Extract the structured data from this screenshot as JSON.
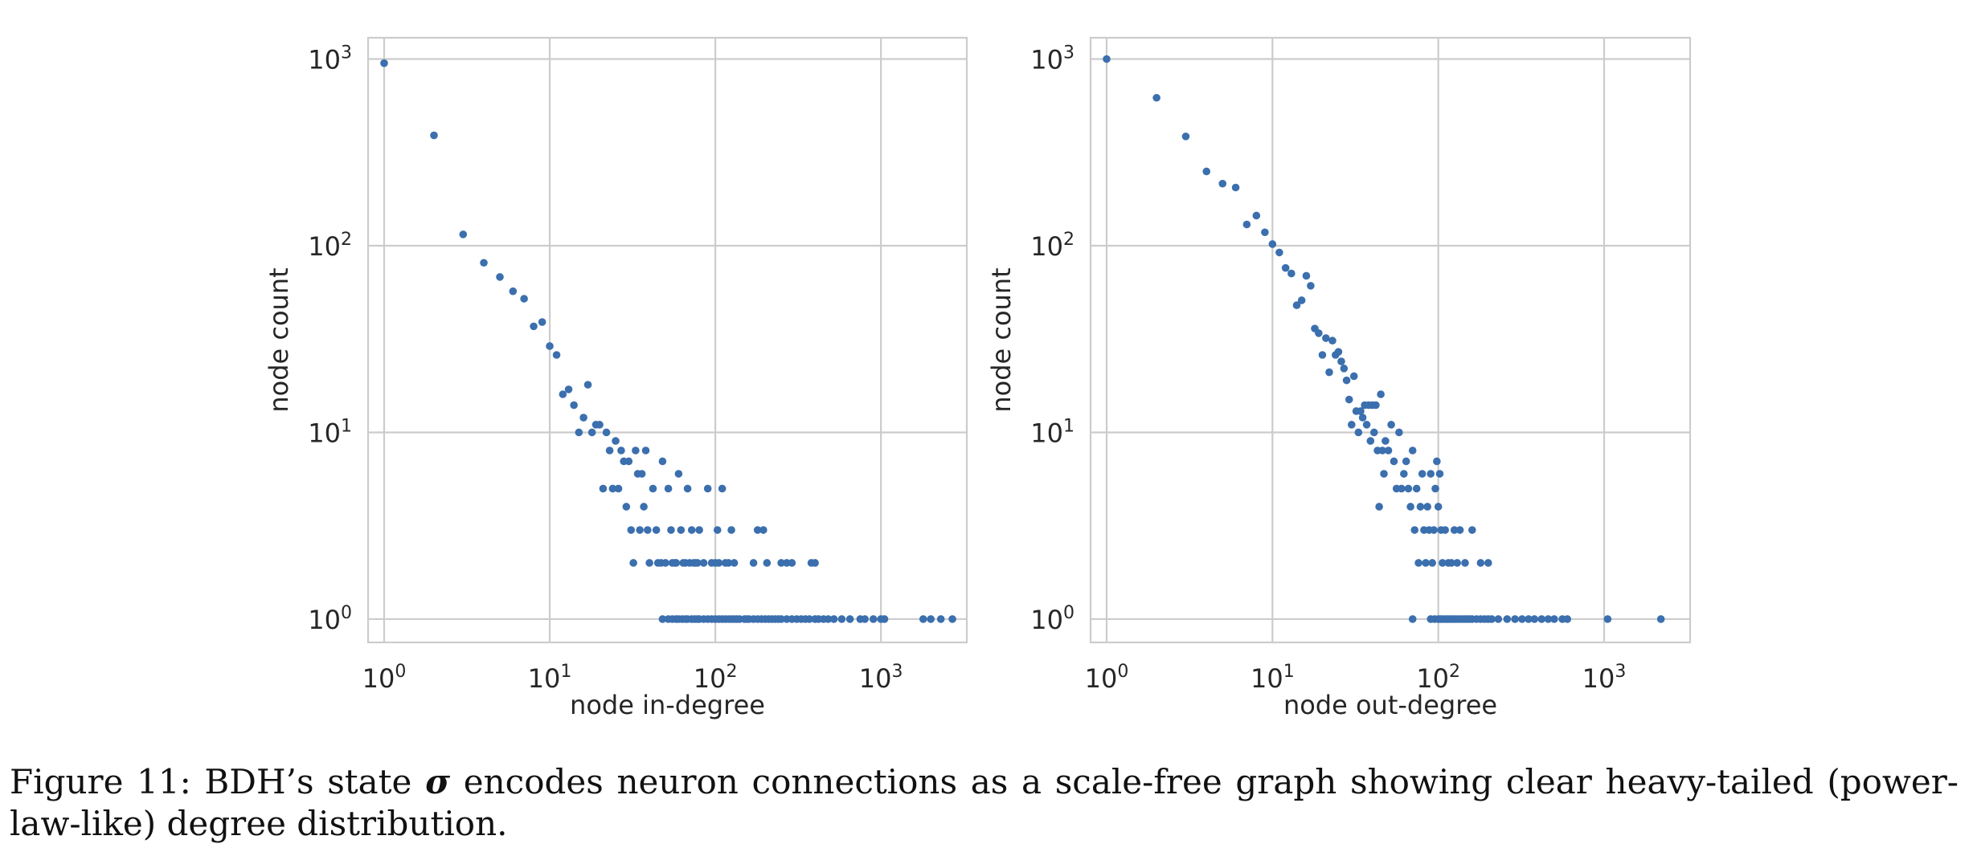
{
  "figure": {
    "caption_prefix": "Figure 11: BDH’s state",
    "caption_symbol": "σ",
    "caption_suffix": "encodes neuron connections as a scale-free graph showing clear heavy-tailed (power-law-like) degree distribution."
  },
  "chart_data": [
    {
      "type": "scatter",
      "xlabel": "node in-degree",
      "ylabel": "node count",
      "xscale": "log",
      "yscale": "log",
      "xlim": [
        0.8,
        3300
      ],
      "ylim": [
        0.75,
        1300
      ],
      "xticks": [
        {
          "value": 1,
          "base": "10",
          "exp": "0"
        },
        {
          "value": 10,
          "base": "10",
          "exp": "1"
        },
        {
          "value": 100,
          "base": "10",
          "exp": "2"
        },
        {
          "value": 1000,
          "base": "10",
          "exp": "3"
        }
      ],
      "yticks": [
        {
          "value": 1,
          "base": "10",
          "exp": "0"
        },
        {
          "value": 10,
          "base": "10",
          "exp": "1"
        },
        {
          "value": 100,
          "base": "10",
          "exp": "2"
        },
        {
          "value": 1000,
          "base": "10",
          "exp": "3"
        }
      ],
      "grid": true,
      "color": "#3b6fae",
      "points": [
        [
          1,
          950
        ],
        [
          2,
          390
        ],
        [
          3,
          115
        ],
        [
          4,
          81
        ],
        [
          5,
          68
        ],
        [
          6,
          57
        ],
        [
          7,
          52
        ],
        [
          8,
          37
        ],
        [
          9,
          39
        ],
        [
          10,
          29
        ],
        [
          11,
          26
        ],
        [
          12,
          16
        ],
        [
          13,
          17
        ],
        [
          14,
          14
        ],
        [
          15,
          10
        ],
        [
          16,
          12
        ],
        [
          17,
          18
        ],
        [
          18,
          10
        ],
        [
          19,
          11
        ],
        [
          20,
          11
        ],
        [
          21,
          5
        ],
        [
          22,
          10
        ],
        [
          23,
          8
        ],
        [
          24,
          5
        ],
        [
          25,
          9
        ],
        [
          26,
          5
        ],
        [
          27,
          8
        ],
        [
          28,
          7
        ],
        [
          29,
          4
        ],
        [
          30,
          7
        ],
        [
          31,
          3
        ],
        [
          32,
          2
        ],
        [
          33,
          8
        ],
        [
          34,
          6
        ],
        [
          35,
          3
        ],
        [
          36,
          6
        ],
        [
          37,
          4
        ],
        [
          38,
          8
        ],
        [
          39,
          3
        ],
        [
          40,
          2
        ],
        [
          42,
          5
        ],
        [
          44,
          3
        ],
        [
          45,
          2
        ],
        [
          47,
          2
        ],
        [
          48,
          7
        ],
        [
          50,
          2
        ],
        [
          52,
          5
        ],
        [
          54,
          3
        ],
        [
          55,
          2
        ],
        [
          57,
          2
        ],
        [
          58,
          2
        ],
        [
          60,
          6
        ],
        [
          62,
          3
        ],
        [
          64,
          2
        ],
        [
          66,
          2
        ],
        [
          68,
          5
        ],
        [
          70,
          2
        ],
        [
          72,
          3
        ],
        [
          74,
          2
        ],
        [
          76,
          2
        ],
        [
          78,
          2
        ],
        [
          80,
          3
        ],
        [
          85,
          2
        ],
        [
          90,
          5
        ],
        [
          95,
          2
        ],
        [
          100,
          2
        ],
        [
          103,
          3
        ],
        [
          105,
          2
        ],
        [
          110,
          5
        ],
        [
          115,
          2
        ],
        [
          120,
          2
        ],
        [
          125,
          3
        ],
        [
          130,
          2
        ],
        [
          170,
          2
        ],
        [
          180,
          3
        ],
        [
          195,
          3
        ],
        [
          205,
          2
        ],
        [
          250,
          2
        ],
        [
          270,
          2
        ],
        [
          290,
          2
        ],
        [
          380,
          2
        ],
        [
          400,
          2
        ],
        [
          48,
          1
        ],
        [
          52,
          1
        ],
        [
          55,
          1
        ],
        [
          58,
          1
        ],
        [
          60,
          1
        ],
        [
          63,
          1
        ],
        [
          66,
          1
        ],
        [
          68,
          1
        ],
        [
          72,
          1
        ],
        [
          75,
          1
        ],
        [
          78,
          1
        ],
        [
          80,
          1
        ],
        [
          85,
          1
        ],
        [
          90,
          1
        ],
        [
          95,
          1
        ],
        [
          100,
          1
        ],
        [
          105,
          1
        ],
        [
          110,
          1
        ],
        [
          115,
          1
        ],
        [
          120,
          1
        ],
        [
          125,
          1
        ],
        [
          130,
          1
        ],
        [
          135,
          1
        ],
        [
          140,
          1
        ],
        [
          150,
          1
        ],
        [
          155,
          1
        ],
        [
          160,
          1
        ],
        [
          170,
          1
        ],
        [
          180,
          1
        ],
        [
          190,
          1
        ],
        [
          200,
          1
        ],
        [
          210,
          1
        ],
        [
          220,
          1
        ],
        [
          230,
          1
        ],
        [
          240,
          1
        ],
        [
          250,
          1
        ],
        [
          270,
          1
        ],
        [
          290,
          1
        ],
        [
          310,
          1
        ],
        [
          330,
          1
        ],
        [
          350,
          1
        ],
        [
          370,
          1
        ],
        [
          400,
          1
        ],
        [
          420,
          1
        ],
        [
          450,
          1
        ],
        [
          480,
          1
        ],
        [
          520,
          1
        ],
        [
          580,
          1
        ],
        [
          650,
          1
        ],
        [
          750,
          1
        ],
        [
          800,
          1
        ],
        [
          900,
          1
        ],
        [
          1000,
          1
        ],
        [
          1050,
          1
        ],
        [
          1800,
          1
        ],
        [
          2000,
          1
        ],
        [
          2300,
          1
        ],
        [
          2700,
          1
        ]
      ]
    },
    {
      "type": "scatter",
      "xlabel": "node out-degree",
      "ylabel": "node count",
      "xscale": "log",
      "yscale": "log",
      "xlim": [
        0.8,
        3300
      ],
      "ylim": [
        0.75,
        1300
      ],
      "xticks": [
        {
          "value": 1,
          "base": "10",
          "exp": "0"
        },
        {
          "value": 10,
          "base": "10",
          "exp": "1"
        },
        {
          "value": 100,
          "base": "10",
          "exp": "2"
        },
        {
          "value": 1000,
          "base": "10",
          "exp": "3"
        }
      ],
      "yticks": [
        {
          "value": 1,
          "base": "10",
          "exp": "0"
        },
        {
          "value": 10,
          "base": "10",
          "exp": "1"
        },
        {
          "value": 100,
          "base": "10",
          "exp": "2"
        },
        {
          "value": 1000,
          "base": "10",
          "exp": "3"
        }
      ],
      "grid": true,
      "color": "#3b6fae",
      "points": [
        [
          1,
          1000
        ],
        [
          2,
          620
        ],
        [
          3,
          385
        ],
        [
          4,
          250
        ],
        [
          5,
          215
        ],
        [
          6,
          205
        ],
        [
          7,
          130
        ],
        [
          8,
          145
        ],
        [
          9,
          118
        ],
        [
          10,
          102
        ],
        [
          11,
          92
        ],
        [
          12,
          76
        ],
        [
          13,
          71
        ],
        [
          14,
          48
        ],
        [
          15,
          51
        ],
        [
          16,
          69
        ],
        [
          17,
          61
        ],
        [
          18,
          36
        ],
        [
          19,
          34
        ],
        [
          20,
          26
        ],
        [
          21,
          32
        ],
        [
          22,
          21
        ],
        [
          23,
          31
        ],
        [
          24,
          26
        ],
        [
          25,
          27
        ],
        [
          26,
          24
        ],
        [
          27,
          22
        ],
        [
          28,
          19
        ],
        [
          29,
          15
        ],
        [
          30,
          11
        ],
        [
          31,
          20
        ],
        [
          32,
          13
        ],
        [
          33,
          10
        ],
        [
          34,
          13
        ],
        [
          35,
          12
        ],
        [
          36,
          14
        ],
        [
          37,
          11
        ],
        [
          38,
          14
        ],
        [
          39,
          9
        ],
        [
          40,
          14
        ],
        [
          41,
          10
        ],
        [
          42,
          14
        ],
        [
          43,
          8
        ],
        [
          44,
          4
        ],
        [
          45,
          16
        ],
        [
          46,
          8
        ],
        [
          47,
          6
        ],
        [
          48,
          9
        ],
        [
          50,
          8
        ],
        [
          52,
          11
        ],
        [
          54,
          7
        ],
        [
          56,
          5
        ],
        [
          58,
          10
        ],
        [
          60,
          5
        ],
        [
          62,
          6
        ],
        [
          64,
          7
        ],
        [
          66,
          5
        ],
        [
          68,
          4
        ],
        [
          70,
          8
        ],
        [
          72,
          3
        ],
        [
          74,
          5
        ],
        [
          76,
          2
        ],
        [
          78,
          4
        ],
        [
          80,
          6
        ],
        [
          82,
          3
        ],
        [
          84,
          2
        ],
        [
          86,
          4
        ],
        [
          88,
          3
        ],
        [
          90,
          6
        ],
        [
          92,
          2
        ],
        [
          94,
          3
        ],
        [
          96,
          5
        ],
        [
          98,
          7
        ],
        [
          100,
          4
        ],
        [
          102,
          6
        ],
        [
          104,
          3
        ],
        [
          106,
          2
        ],
        [
          110,
          3
        ],
        [
          115,
          2
        ],
        [
          120,
          2
        ],
        [
          125,
          3
        ],
        [
          130,
          2
        ],
        [
          135,
          3
        ],
        [
          145,
          2
        ],
        [
          160,
          3
        ],
        [
          180,
          2
        ],
        [
          200,
          2
        ],
        [
          70,
          1
        ],
        [
          90,
          1
        ],
        [
          95,
          1
        ],
        [
          100,
          1
        ],
        [
          103,
          1
        ],
        [
          106,
          1
        ],
        [
          110,
          1
        ],
        [
          114,
          1
        ],
        [
          118,
          1
        ],
        [
          122,
          1
        ],
        [
          126,
          1
        ],
        [
          130,
          1
        ],
        [
          135,
          1
        ],
        [
          140,
          1
        ],
        [
          145,
          1
        ],
        [
          150,
          1
        ],
        [
          155,
          1
        ],
        [
          160,
          1
        ],
        [
          170,
          1
        ],
        [
          180,
          1
        ],
        [
          190,
          1
        ],
        [
          200,
          1
        ],
        [
          210,
          1
        ],
        [
          230,
          1
        ],
        [
          260,
          1
        ],
        [
          290,
          1
        ],
        [
          320,
          1
        ],
        [
          350,
          1
        ],
        [
          380,
          1
        ],
        [
          420,
          1
        ],
        [
          460,
          1
        ],
        [
          500,
          1
        ],
        [
          560,
          1
        ],
        [
          600,
          1
        ],
        [
          1050,
          1
        ],
        [
          2200,
          1
        ]
      ]
    }
  ]
}
